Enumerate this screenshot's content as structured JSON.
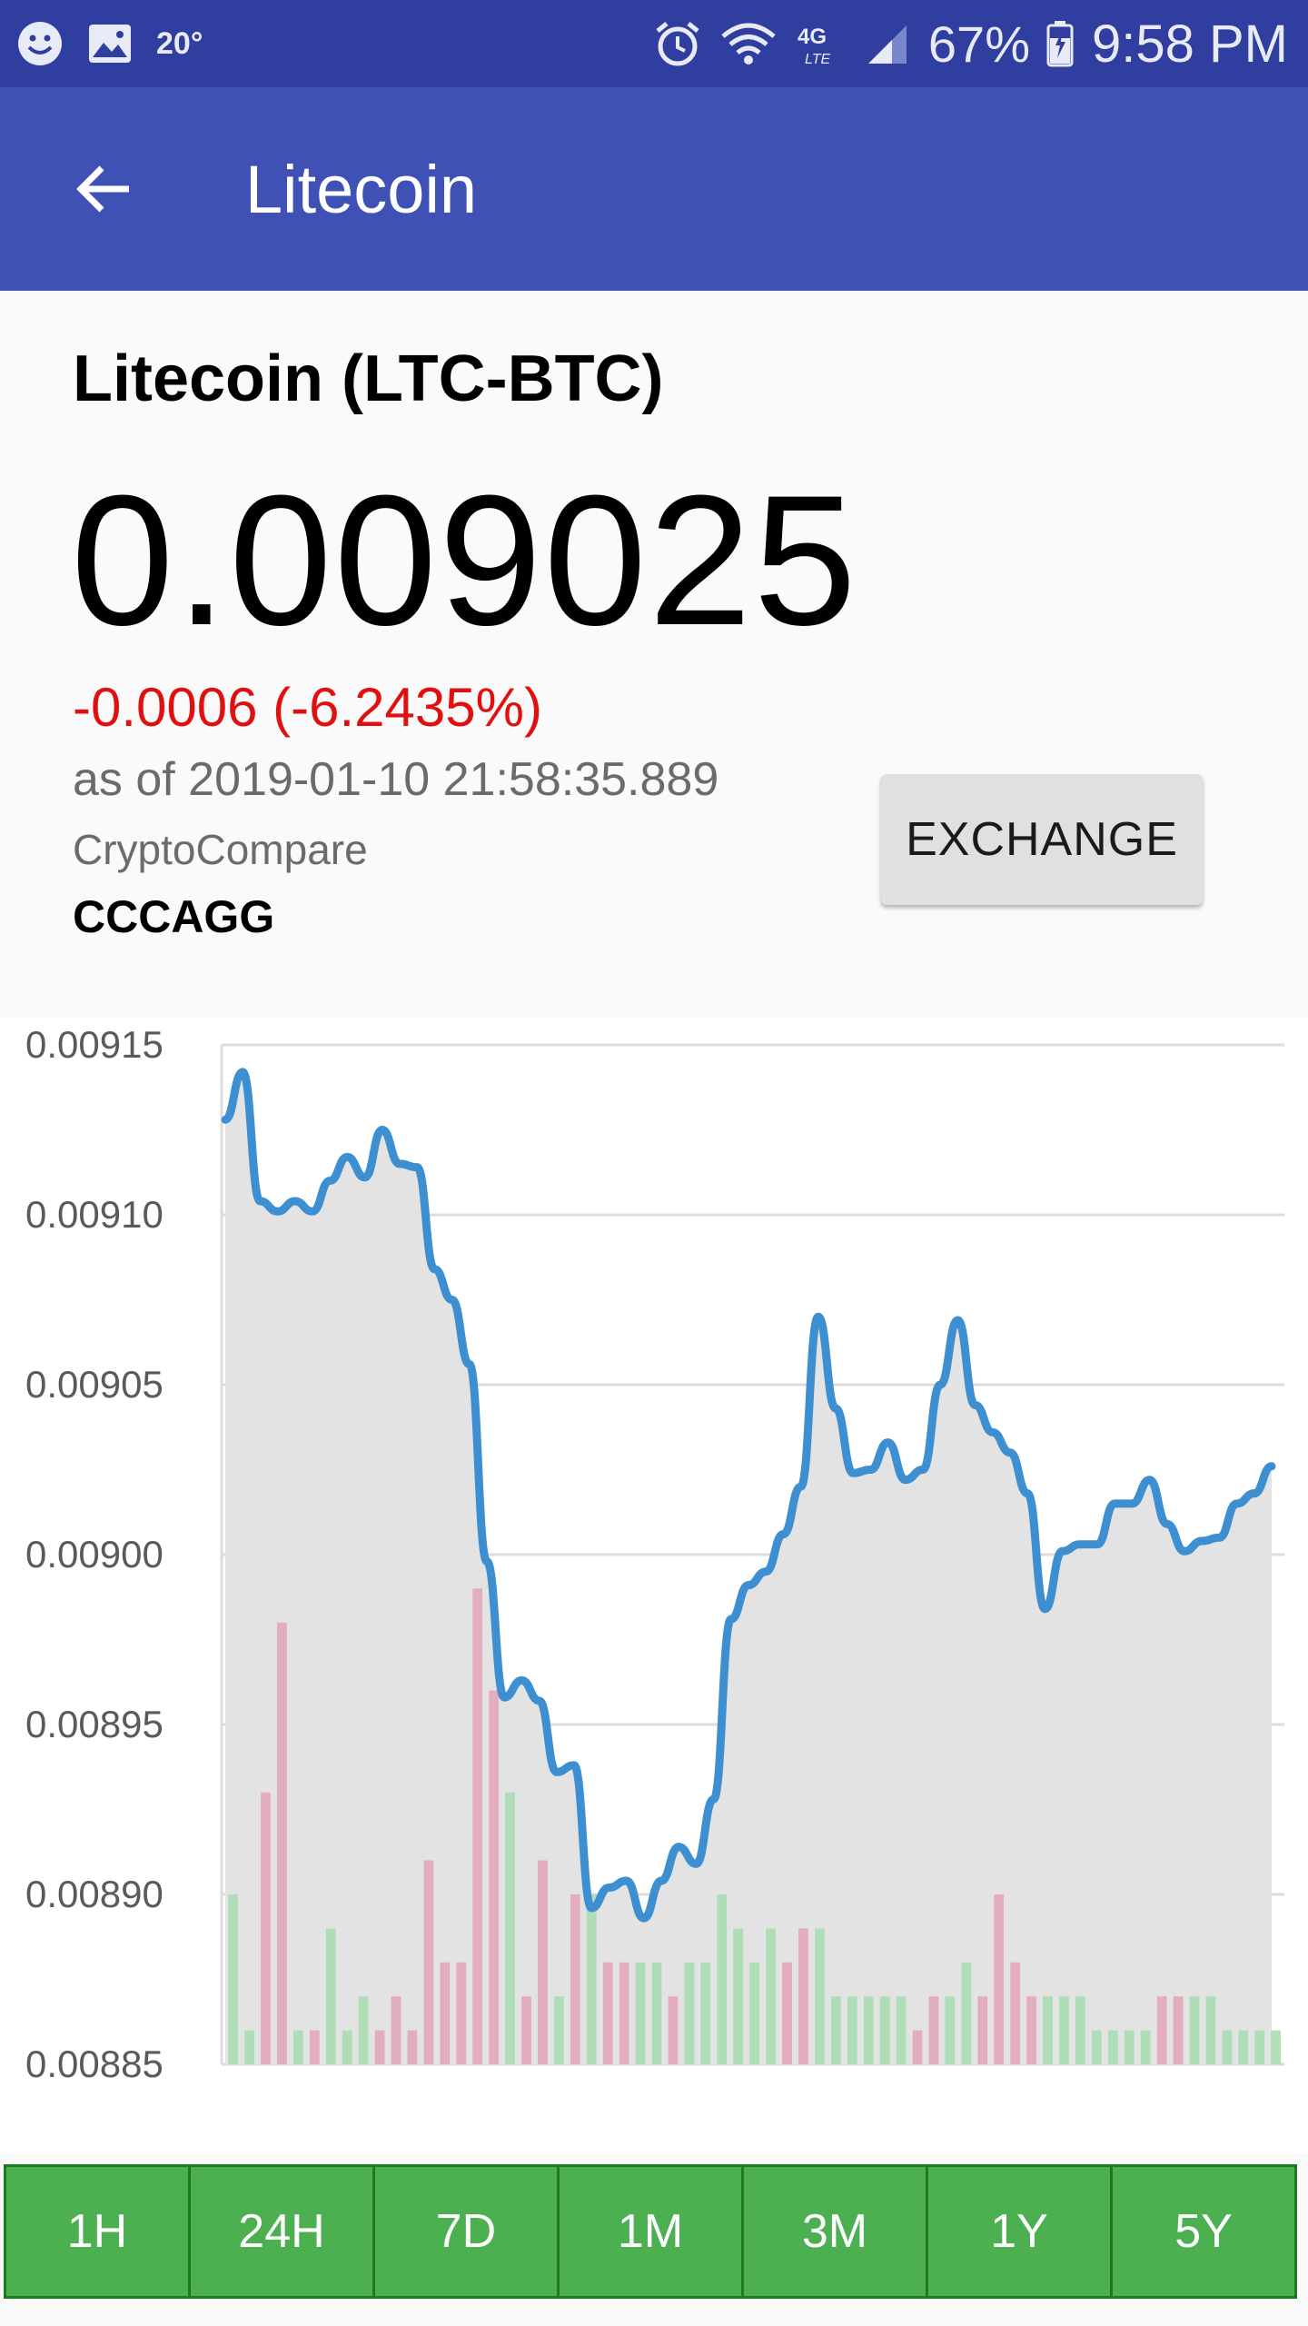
{
  "status_bar": {
    "temperature": "20°",
    "battery": "67%",
    "time": "9:58 PM",
    "left_icons": [
      "smiley-icon",
      "image-icon"
    ],
    "right_icons": [
      "alarm-icon",
      "wifi-icon",
      "lte-icon",
      "signal-icon",
      "battery-icon"
    ],
    "lte_label": "4G"
  },
  "app_bar": {
    "title": "Litecoin",
    "back_icon": "arrow-left-icon",
    "color": "#3f51b5"
  },
  "info": {
    "coin_title": "Litecoin (LTC-BTC)",
    "price": "0.009025",
    "change": "-0.0006 (-6.2435%)",
    "change_color": "#e01010",
    "as_of": "as of 2019-01-10 21:58:35.889",
    "source": "CryptoCompare",
    "market": "CCCAGG",
    "exchange_label": "EXCHANGE"
  },
  "chart_data": {
    "type": "line",
    "ylim": [
      0.00885,
      0.00915
    ],
    "yticks": [
      "0.00915",
      "0.00910",
      "0.00905",
      "0.00900",
      "0.00895",
      "0.00890",
      "0.00885"
    ],
    "grid": true,
    "line_color": "#3d8fd1",
    "fill_color": "#e3e3e3",
    "series": [
      {
        "values": [
          0.009128,
          0.009142,
          0.009104,
          0.009101,
          0.009104,
          0.009101,
          0.00911,
          0.009117,
          0.009111,
          0.009125,
          0.009115,
          0.009114,
          0.009084,
          0.009075,
          0.009056,
          0.008998,
          0.008958,
          0.008963,
          0.008957,
          0.008936,
          0.008938,
          0.008896,
          0.008902,
          0.008904,
          0.008893,
          0.008904,
          0.008914,
          0.008909,
          0.008928,
          0.008981,
          0.008991,
          0.008995,
          0.009006,
          0.00902,
          0.00907,
          0.009043,
          0.009024,
          0.009025,
          0.009033,
          0.009022,
          0.009025,
          0.00905,
          0.009069,
          0.009044,
          0.009036,
          0.00903,
          0.009018,
          0.008984,
          0.009001,
          0.009003,
          0.009003,
          0.009015,
          0.009015,
          0.009022,
          0.009009,
          0.009001,
          0.009004,
          0.009005,
          0.009015,
          0.009018,
          0.009026
        ]
      }
    ],
    "volume": {
      "values": [
        0.0089,
        0.00886,
        0.00893,
        0.00898,
        0.00886,
        0.00886,
        0.00889,
        0.00886,
        0.00887,
        0.00886,
        0.00887,
        0.00886,
        0.00891,
        0.00888,
        0.00888,
        0.00899,
        0.00896,
        0.00893,
        0.00887,
        0.00891,
        0.00887,
        0.0089,
        0.0089,
        0.00888,
        0.00888,
        0.00888,
        0.00888,
        0.00887,
        0.00888,
        0.00888,
        0.0089,
        0.00889,
        0.00888,
        0.00889,
        0.00888,
        0.00889,
        0.00889,
        0.00887,
        0.00887,
        0.00887,
        0.00887,
        0.00887,
        0.00886,
        0.00887,
        0.00887,
        0.00888,
        0.00887,
        0.0089,
        0.00888,
        0.00887,
        0.00887,
        0.00887,
        0.00887,
        0.00886,
        0.00886,
        0.00886,
        0.00886,
        0.00887,
        0.00887,
        0.00887,
        0.00887,
        0.00886,
        0.00886,
        0.00886,
        0.00886
      ],
      "directions": [
        "up",
        "up",
        "down",
        "down",
        "up",
        "down",
        "up",
        "up",
        "up",
        "down",
        "down",
        "down",
        "down",
        "down",
        "down",
        "down",
        "down",
        "up",
        "down",
        "down",
        "up",
        "down",
        "up",
        "down",
        "down",
        "up",
        "up",
        "down",
        "up",
        "up",
        "up",
        "up",
        "up",
        "up",
        "down",
        "down",
        "up",
        "up",
        "up",
        "up",
        "up",
        "up",
        "down",
        "down",
        "up",
        "up",
        "down",
        "down",
        "down",
        "down",
        "up",
        "up",
        "up",
        "up",
        "up",
        "up",
        "up",
        "down",
        "down",
        "up",
        "up",
        "up",
        "up",
        "up",
        "up"
      ],
      "up_color": "#a8dbb3",
      "down_color": "#e3a6b8"
    }
  },
  "ranges": [
    "1H",
    "24H",
    "7D",
    "1M",
    "3M",
    "1Y",
    "5Y"
  ]
}
